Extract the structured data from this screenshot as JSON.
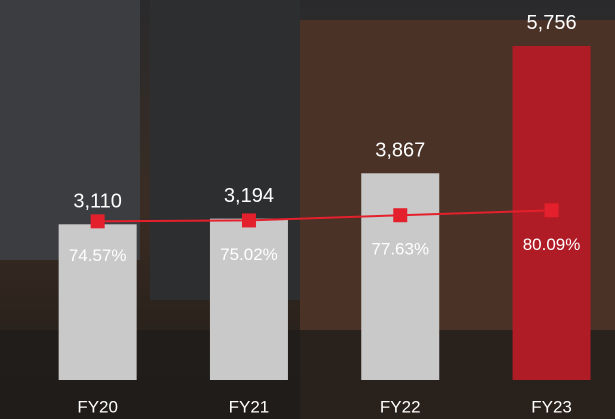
{
  "chart_data": {
    "type": "bar",
    "categories": [
      "FY20",
      "FY21",
      "FY22",
      "FY23"
    ],
    "values": [
      3110,
      3194,
      3867,
      5756
    ],
    "value_labels": [
      "3,110",
      "3,194",
      "3,867",
      "5,756"
    ],
    "colors": [
      "#c9c9c9",
      "#c9c9c9",
      "#c9c9c9",
      "#b01c26"
    ],
    "ylim": [
      800,
      5800
    ],
    "y2lim": [
      -5,
      164
    ],
    "series": [
      {
        "type": "line",
        "axis": "y2",
        "color": "#e3202b",
        "values": [
          74.57,
          75.02,
          77.63,
          80.09
        ],
        "value_labels": [
          "74.57%",
          "75.02%",
          "77.63%",
          "80.09%"
        ]
      }
    ]
  }
}
